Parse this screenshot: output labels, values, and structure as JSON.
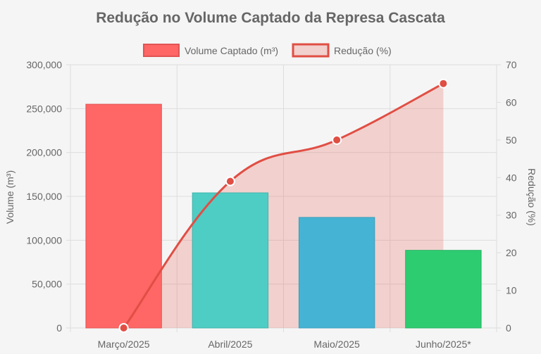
{
  "chart_data": {
    "type": "bar",
    "title": "Redução no Volume Captado da Represa Cascata",
    "categories": [
      "Março/2025",
      "Abril/2025",
      "Maio/2025",
      "Junho/2025*"
    ],
    "series": [
      {
        "name": "Volume Captado (m³)",
        "type": "bar",
        "axis": "left",
        "values": [
          255000,
          154000,
          126000,
          88500
        ],
        "colors": [
          "#ff6666",
          "#4ecdc4",
          "#45b3d3",
          "#2ecc71"
        ],
        "border_colors": [
          "#e05555",
          "#3fb5ad",
          "#3aa0bd",
          "#27b463"
        ]
      },
      {
        "name": "Redução (%)",
        "type": "area",
        "axis": "right",
        "values": [
          0,
          39,
          50,
          65
        ],
        "color": "#e04e44",
        "fill": "rgba(231,110,100,0.28)"
      }
    ],
    "ylabel": "Volume (m³)",
    "y2label": "Redução (%)",
    "ylim": [
      0,
      300000
    ],
    "y2lim": [
      0,
      70
    ],
    "yticks": [
      "0",
      "50,000",
      "100,000",
      "150,000",
      "200,000",
      "250,000",
      "300,000"
    ],
    "y2ticks": [
      "0",
      "10",
      "20",
      "30",
      "40",
      "50",
      "60",
      "70"
    ],
    "legend": "top",
    "grid": true
  }
}
